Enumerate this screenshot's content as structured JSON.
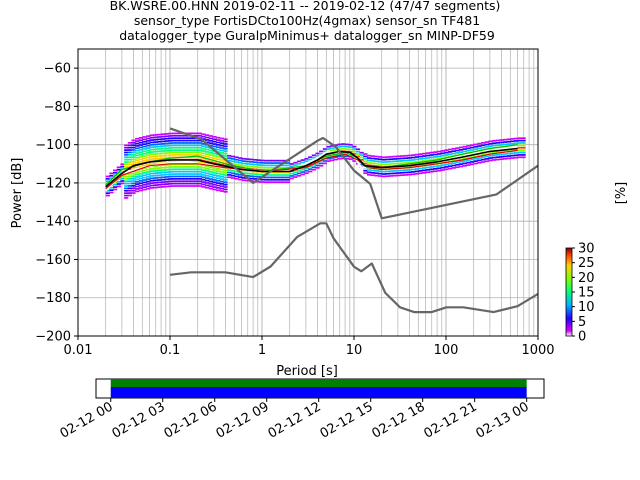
{
  "chart_data": [
    {
      "type": "heatmap",
      "subtype": "ppsd",
      "title_lines": [
        "BK.WSRE.00.HNN   2019-02-11 -- 2019-02-12  (47/47 segments)",
        "sensor_type FortisDCto100Hz(4gmax) sensor_sn TF481",
        "datalogger_type GuralpMinimus+ datalogger_sn MINP-DF59"
      ],
      "xlabel": "Period [s]",
      "ylabel": "Power [dB]",
      "x_scale": "log",
      "xlim": [
        0.01,
        1000
      ],
      "ylim": [
        -200,
        -50
      ],
      "x_ticks": [
        0.01,
        0.1,
        1,
        10,
        100,
        1000
      ],
      "x_tick_labels": [
        "0.01",
        "0.1",
        "1",
        "10",
        "100",
        "1000"
      ],
      "y_ticks": [
        -200,
        -180,
        -160,
        -140,
        -120,
        -100,
        -80,
        -60
      ],
      "y_tick_labels": [
        "−200",
        "−180",
        "−160",
        "−140",
        "−120",
        "−100",
        "−80",
        "−60"
      ],
      "grid": true,
      "colorbar": {
        "label": "[%]",
        "range": [
          0,
          30
        ],
        "ticks": [
          0,
          5,
          10,
          15,
          20,
          25,
          30
        ],
        "tick_labels": [
          "0",
          "5",
          "10",
          "15",
          "20",
          "25",
          "30"
        ]
      },
      "curves": {
        "noise_model_high": {
          "color": "#666666",
          "points": [
            [
              0.1,
              -91.5
            ],
            [
              0.22,
              -97.2
            ],
            [
              0.8,
              -120
            ],
            [
              4,
              -98
            ],
            [
              4.6,
              -96.5
            ],
            [
              6.3,
              -101
            ],
            [
              10,
              -113.5
            ],
            [
              15,
              -120.5
            ],
            [
              20,
              -138.5
            ],
            [
              354,
              -126
            ],
            [
              1000,
              -111
            ]
          ]
        },
        "noise_model_low": {
          "color": "#666666",
          "points": [
            [
              0.1,
              -168
            ],
            [
              0.17,
              -166.7
            ],
            [
              0.4,
              -166.7
            ],
            [
              0.8,
              -169.2
            ],
            [
              1.24,
              -163.7
            ],
            [
              2.4,
              -148.3
            ],
            [
              4.3,
              -141.1
            ],
            [
              5,
              -141.1
            ],
            [
              6,
              -149
            ],
            [
              10,
              -163.8
            ],
            [
              12,
              -166.2
            ],
            [
              15.6,
              -162.1
            ],
            [
              21.9,
              -177.5
            ],
            [
              31.6,
              -185
            ],
            [
              45,
              -187.5
            ],
            [
              70,
              -187.5
            ],
            [
              101,
              -185
            ],
            [
              154,
              -185
            ],
            [
              328,
              -187.5
            ],
            [
              600,
              -184.4
            ],
            [
              1000,
              -178
            ]
          ]
        },
        "mode_white": {
          "color": "#ffffff",
          "points": [
            [
              0.02,
              -124
            ],
            [
              0.03,
              -115
            ],
            [
              0.05,
              -112
            ],
            [
              0.08,
              -110
            ],
            [
              0.15,
              -109
            ],
            [
              0.3,
              -111
            ],
            [
              0.6,
              -113
            ],
            [
              1,
              -114
            ],
            [
              2,
              -113
            ],
            [
              3,
              -110
            ],
            [
              4,
              -107
            ],
            [
              5,
              -104
            ],
            [
              8,
              -104
            ],
            [
              10,
              -106
            ],
            [
              12,
              -112
            ],
            [
              20,
              -112
            ],
            [
              40,
              -111
            ],
            [
              80,
              -109
            ],
            [
              150,
              -106
            ],
            [
              300,
              -103
            ],
            [
              600,
              -101
            ]
          ]
        },
        "mean_black": {
          "color": "#000000",
          "points": [
            [
              0.02,
              -122
            ],
            [
              0.03,
              -115
            ],
            [
              0.04,
              -111
            ],
            [
              0.06,
              -109
            ],
            [
              0.1,
              -108
            ],
            [
              0.2,
              -108
            ],
            [
              0.3,
              -110
            ],
            [
              0.6,
              -113
            ],
            [
              1,
              -114
            ],
            [
              2,
              -114
            ],
            [
              3,
              -111
            ],
            [
              4,
              -108
            ],
            [
              5,
              -105
            ],
            [
              7,
              -103.5
            ],
            [
              9,
              -104
            ],
            [
              11,
              -107
            ],
            [
              13,
              -111
            ],
            [
              20,
              -112
            ],
            [
              40,
              -111
            ],
            [
              80,
              -109
            ],
            [
              150,
              -106.5
            ],
            [
              300,
              -103.5
            ],
            [
              600,
              -102
            ]
          ]
        },
        "percentile_green": {
          "color": "#00c000",
          "points": [
            [
              0.02,
              -121
            ],
            [
              0.03,
              -113
            ],
            [
              0.06,
              -109
            ],
            [
              0.1,
              -107
            ],
            [
              0.2,
              -106
            ],
            [
              0.4,
              -110
            ],
            [
              1,
              -114
            ],
            [
              3,
              -111
            ],
            [
              5,
              -106
            ],
            [
              8,
              -104
            ],
            [
              11,
              -107
            ],
            [
              14,
              -112
            ],
            [
              20,
              -112
            ],
            [
              40,
              -110
            ],
            [
              80,
              -108
            ],
            [
              150,
              -105
            ],
            [
              300,
              -102
            ],
            [
              600,
              -100
            ]
          ]
        },
        "percentile_red": {
          "color": "#e00000",
          "points": [
            [
              0.02,
              -123
            ],
            [
              0.03,
              -116
            ],
            [
              0.06,
              -111
            ],
            [
              0.1,
              -110
            ],
            [
              0.2,
              -110
            ],
            [
              0.4,
              -112
            ],
            [
              1,
              -114
            ],
            [
              3,
              -112
            ],
            [
              5,
              -107
            ],
            [
              8,
              -105
            ],
            [
              11,
              -108
            ],
            [
              14,
              -112
            ],
            [
              20,
              -113
            ],
            [
              40,
              -112
            ],
            [
              80,
              -110
            ],
            [
              150,
              -108
            ],
            [
              300,
              -105
            ],
            [
              600,
              -103
            ]
          ]
        }
      }
    },
    {
      "type": "timeline",
      "x_tick_labels": [
        "02-12 00",
        "02-12 03",
        "02-12 06",
        "02-12 09",
        "02-12 12",
        "02-12 15",
        "02-12 18",
        "02-12 21",
        "02-13 00"
      ],
      "xlim_hours": [
        -0.85,
        25
      ],
      "data_range_hours": [
        0,
        24
      ],
      "bars": [
        {
          "color": "#008000"
        },
        {
          "color": "#0000ff"
        }
      ]
    }
  ]
}
